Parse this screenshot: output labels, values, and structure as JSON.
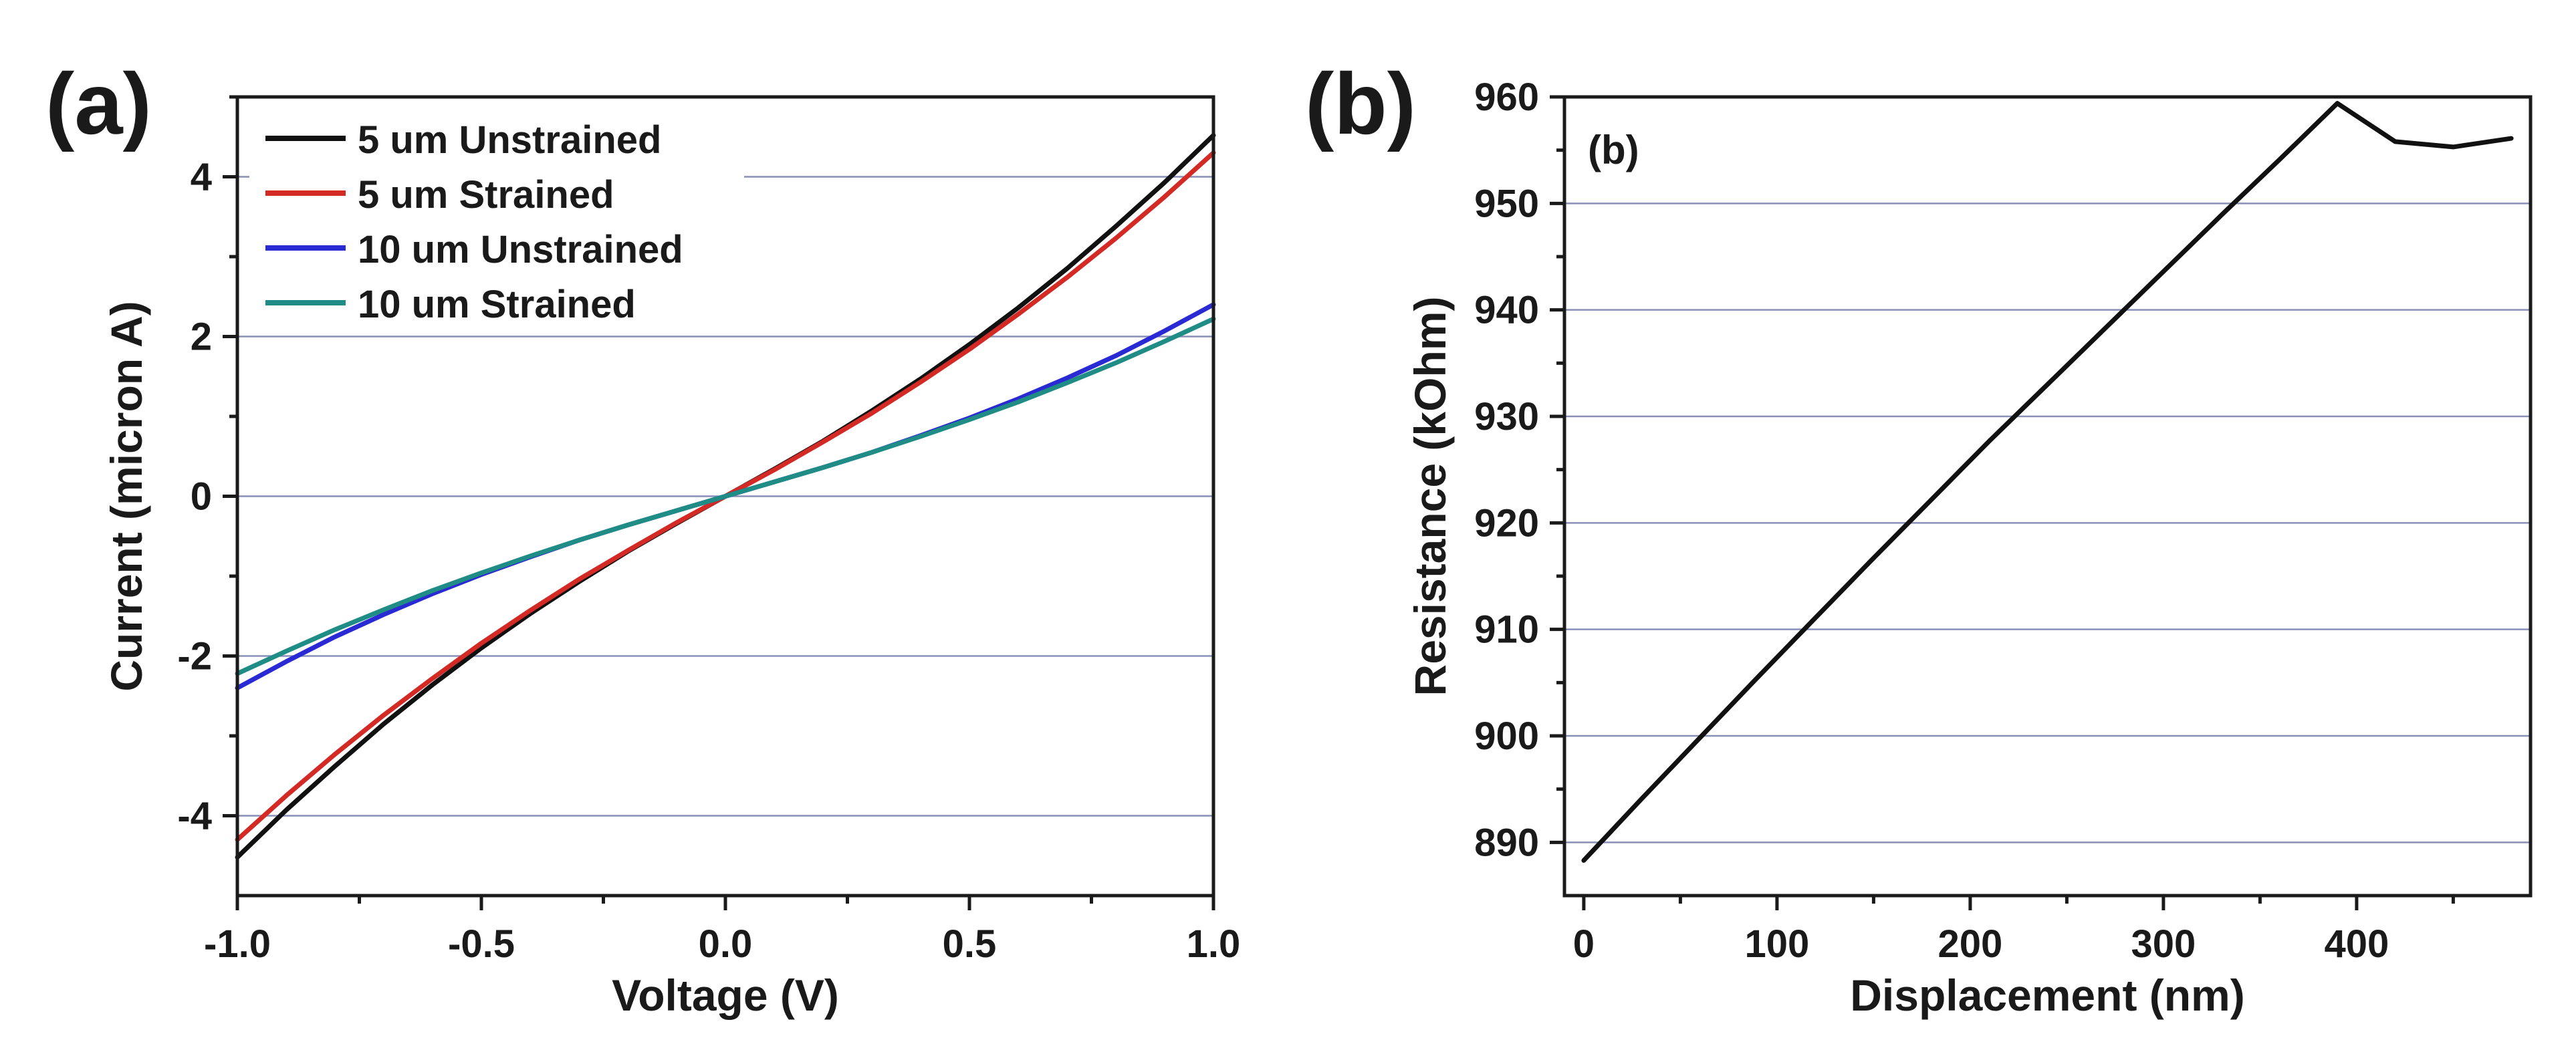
{
  "panels": [
    {
      "label": "(a)"
    },
    {
      "label": "(b)"
    }
  ],
  "chart_data": [
    {
      "type": "line",
      "title": "",
      "xlabel": "Voltage (V)",
      "ylabel": "Current (micron A)",
      "xlim": [
        -1.0,
        1.0
      ],
      "ylim": [
        -5.0,
        5.0
      ],
      "x_ticks": [
        -1.0,
        -0.5,
        0.0,
        0.5,
        1.0
      ],
      "x_tick_labels": [
        "-1.0",
        "-0.5",
        "0.0",
        "0.5",
        "1.0"
      ],
      "y_ticks": [
        -4,
        -2,
        0,
        2,
        4
      ],
      "y_tick_labels": [
        "-4",
        "-2",
        "0",
        "2",
        "4"
      ],
      "grid": "horizontal",
      "legend_position": "top-left",
      "x": [
        -1.0,
        -0.9,
        -0.8,
        -0.7,
        -0.6,
        -0.5,
        -0.4,
        -0.3,
        -0.2,
        -0.1,
        0.0,
        0.1,
        0.2,
        0.3,
        0.4,
        0.5,
        0.6,
        0.7,
        0.8,
        0.9,
        1.0
      ],
      "series": [
        {
          "name": "5 um Unstrained",
          "color": "#111111",
          "values": [
            -4.52,
            -3.93,
            -3.38,
            -2.85,
            -2.36,
            -1.9,
            -1.47,
            -1.07,
            -0.69,
            -0.34,
            0.0,
            0.34,
            0.69,
            1.07,
            1.47,
            1.9,
            2.36,
            2.85,
            3.38,
            3.93,
            4.52
          ]
        },
        {
          "name": "5 um Strained",
          "color": "#d42a26",
          "values": [
            -4.3,
            -3.75,
            -3.23,
            -2.74,
            -2.28,
            -1.84,
            -1.43,
            -1.04,
            -0.68,
            -0.33,
            0.0,
            0.33,
            0.68,
            1.04,
            1.43,
            1.84,
            2.28,
            2.74,
            3.23,
            3.75,
            4.3
          ]
        },
        {
          "name": "10 um Unstrained",
          "color": "#2a2ad4",
          "values": [
            -2.4,
            -2.07,
            -1.76,
            -1.48,
            -1.22,
            -0.98,
            -0.76,
            -0.55,
            -0.36,
            -0.18,
            0.0,
            0.18,
            0.36,
            0.55,
            0.76,
            0.98,
            1.22,
            1.48,
            1.76,
            2.07,
            2.4
          ]
        },
        {
          "name": "10 um Strained",
          "color": "#1f8c86",
          "values": [
            -2.22,
            -1.94,
            -1.67,
            -1.42,
            -1.18,
            -0.96,
            -0.75,
            -0.55,
            -0.36,
            -0.18,
            0.0,
            0.18,
            0.36,
            0.55,
            0.75,
            0.96,
            1.18,
            1.42,
            1.67,
            1.94,
            2.22
          ]
        }
      ]
    },
    {
      "type": "line",
      "title": "",
      "annotation": "(b)",
      "xlabel": "Displacement (nm)",
      "ylabel": "Resistance (kOhm)",
      "xlim": [
        -10,
        490
      ],
      "ylim": [
        885,
        960
      ],
      "x_ticks": [
        0,
        100,
        200,
        300,
        400
      ],
      "x_tick_labels": [
        "0",
        "100",
        "200",
        "300",
        "400"
      ],
      "y_ticks": [
        890,
        900,
        910,
        920,
        930,
        940,
        950,
        960
      ],
      "y_tick_labels": [
        "890",
        "900",
        "910",
        "920",
        "930",
        "940",
        "950",
        "960"
      ],
      "grid": "horizontal",
      "x": [
        0,
        30,
        60,
        90,
        120,
        150,
        180,
        210,
        240,
        270,
        300,
        330,
        360,
        390,
        420,
        450,
        480
      ],
      "series": [
        {
          "name": "Resistance",
          "color": "#111111",
          "values": [
            888.3,
            894.1,
            899.8,
            905.5,
            911.1,
            916.7,
            922.2,
            927.7,
            933.0,
            938.3,
            943.6,
            948.9,
            954.1,
            959.4,
            955.8,
            955.3,
            956.1
          ]
        }
      ]
    }
  ]
}
